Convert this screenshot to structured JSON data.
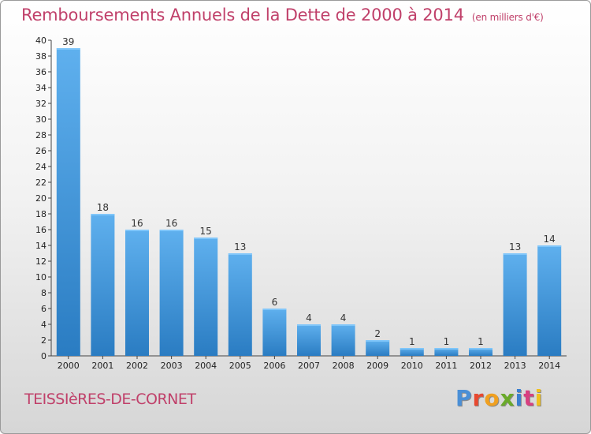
{
  "header": {
    "title": "Remboursements Annuels de la Dette de 2000 à 2014",
    "subtitle": "(en milliers d'€)"
  },
  "footer": {
    "commune": "TEISSIèRES-DE-CORNET",
    "logo": "Proxiti",
    "logo_colors": [
      "#4a8fd6",
      "#e8482f",
      "#f0a020",
      "#6aaa2a",
      "#3a7fd0",
      "#d84080",
      "#f0c020"
    ]
  },
  "colors": {
    "bar_top": "#5fb0ee",
    "bar_bottom": "#2a7cc2",
    "title": "#c0406a"
  },
  "chart_data": {
    "type": "bar",
    "categories": [
      "2000",
      "2001",
      "2002",
      "2003",
      "2004",
      "2005",
      "2006",
      "2007",
      "2008",
      "2009",
      "2010",
      "2011",
      "2012",
      "2013",
      "2014"
    ],
    "values": [
      39,
      18,
      16,
      16,
      15,
      13,
      6,
      4,
      4,
      2,
      1,
      1,
      1,
      13,
      14
    ],
    "title": "Remboursements Annuels de la Dette de 2000 à 2014",
    "xlabel": "",
    "ylabel": "",
    "ylim": [
      0,
      40
    ],
    "yticks": [
      0,
      2,
      4,
      6,
      8,
      10,
      12,
      14,
      16,
      18,
      20,
      22,
      24,
      26,
      28,
      30,
      32,
      34,
      36,
      38,
      40
    ],
    "grid": false,
    "legend": "none"
  }
}
